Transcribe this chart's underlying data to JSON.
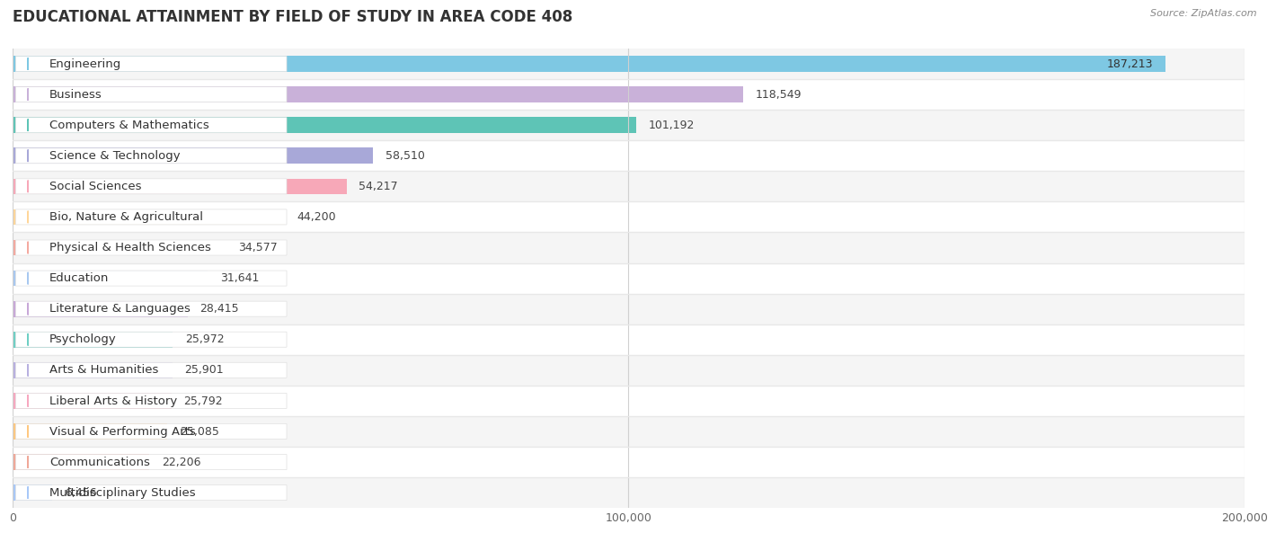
{
  "title": "EDUCATIONAL ATTAINMENT BY FIELD OF STUDY IN AREA CODE 408",
  "source": "Source: ZipAtlas.com",
  "categories": [
    "Engineering",
    "Business",
    "Computers & Mathematics",
    "Science & Technology",
    "Social Sciences",
    "Bio, Nature & Agricultural",
    "Physical & Health Sciences",
    "Education",
    "Literature & Languages",
    "Psychology",
    "Arts & Humanities",
    "Liberal Arts & History",
    "Visual & Performing Arts",
    "Communications",
    "Multidisciplinary Studies"
  ],
  "values": [
    187213,
    118549,
    101192,
    58510,
    54217,
    44200,
    34577,
    31641,
    28415,
    25972,
    25901,
    25792,
    25085,
    22206,
    6456
  ],
  "bar_colors": [
    "#7ec8e3",
    "#c9b1d9",
    "#5ec4b6",
    "#a8a8d8",
    "#f7a8b8",
    "#ffd699",
    "#f4a9a0",
    "#a8c8f0",
    "#c8a8d8",
    "#6ecfc4",
    "#b8b0e0",
    "#f7a8c0",
    "#ffc880",
    "#f0a898",
    "#a8c8f8"
  ],
  "row_colors": [
    "#f5f5f5",
    "#ffffff"
  ],
  "xlim": [
    0,
    200000
  ],
  "xticks": [
    0,
    100000,
    200000
  ],
  "xtick_labels": [
    "0",
    "100,000",
    "200,000"
  ],
  "background_color": "#ffffff",
  "title_fontsize": 12,
  "label_fontsize": 9.5,
  "value_fontsize": 9
}
